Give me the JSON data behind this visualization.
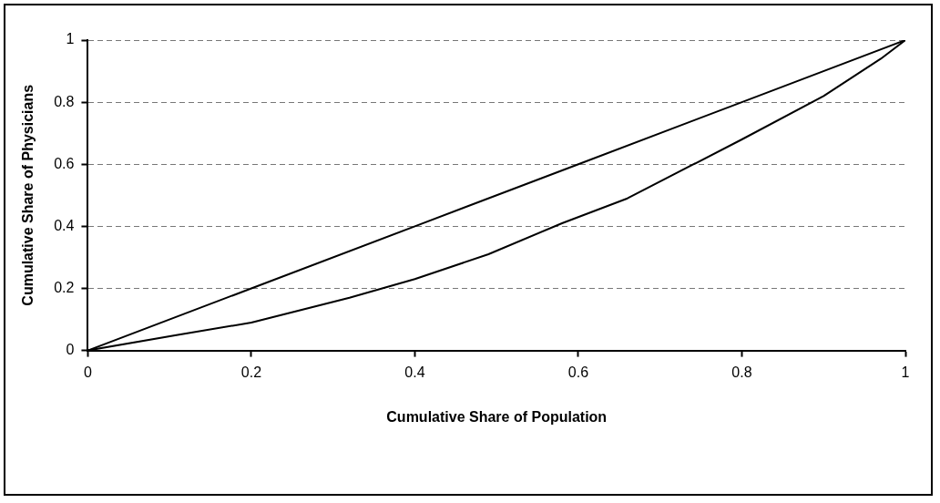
{
  "chart_data": {
    "type": "line",
    "xlabel": "Cumulative Share of Population",
    "ylabel": "Cumulative Share of Physicians",
    "xlim": [
      0,
      1
    ],
    "xticks": [
      0,
      0.2,
      0.4,
      0.6,
      0.8,
      1
    ],
    "ylim": [
      0,
      1
    ],
    "yticks": [
      0,
      0.2,
      0.4,
      0.6,
      0.8,
      1
    ],
    "grid": "y",
    "legend": false,
    "marker": "none",
    "line_style": "solid",
    "series": [
      {
        "color": "#000000",
        "x": [
          0,
          0.2,
          0.4,
          0.6,
          0.8,
          1
        ],
        "values": [
          0,
          0.2,
          0.4,
          0.6,
          0.8,
          1
        ]
      },
      {
        "color": "#000000",
        "x": [
          0,
          0.11,
          0.2,
          0.32,
          0.4,
          0.49,
          0.58,
          0.66,
          0.8,
          0.9,
          0.97,
          1
        ],
        "values": [
          0,
          0.05,
          0.09,
          0.17,
          0.23,
          0.31,
          0.41,
          0.49,
          0.68,
          0.82,
          0.94,
          1
        ]
      }
    ]
  }
}
